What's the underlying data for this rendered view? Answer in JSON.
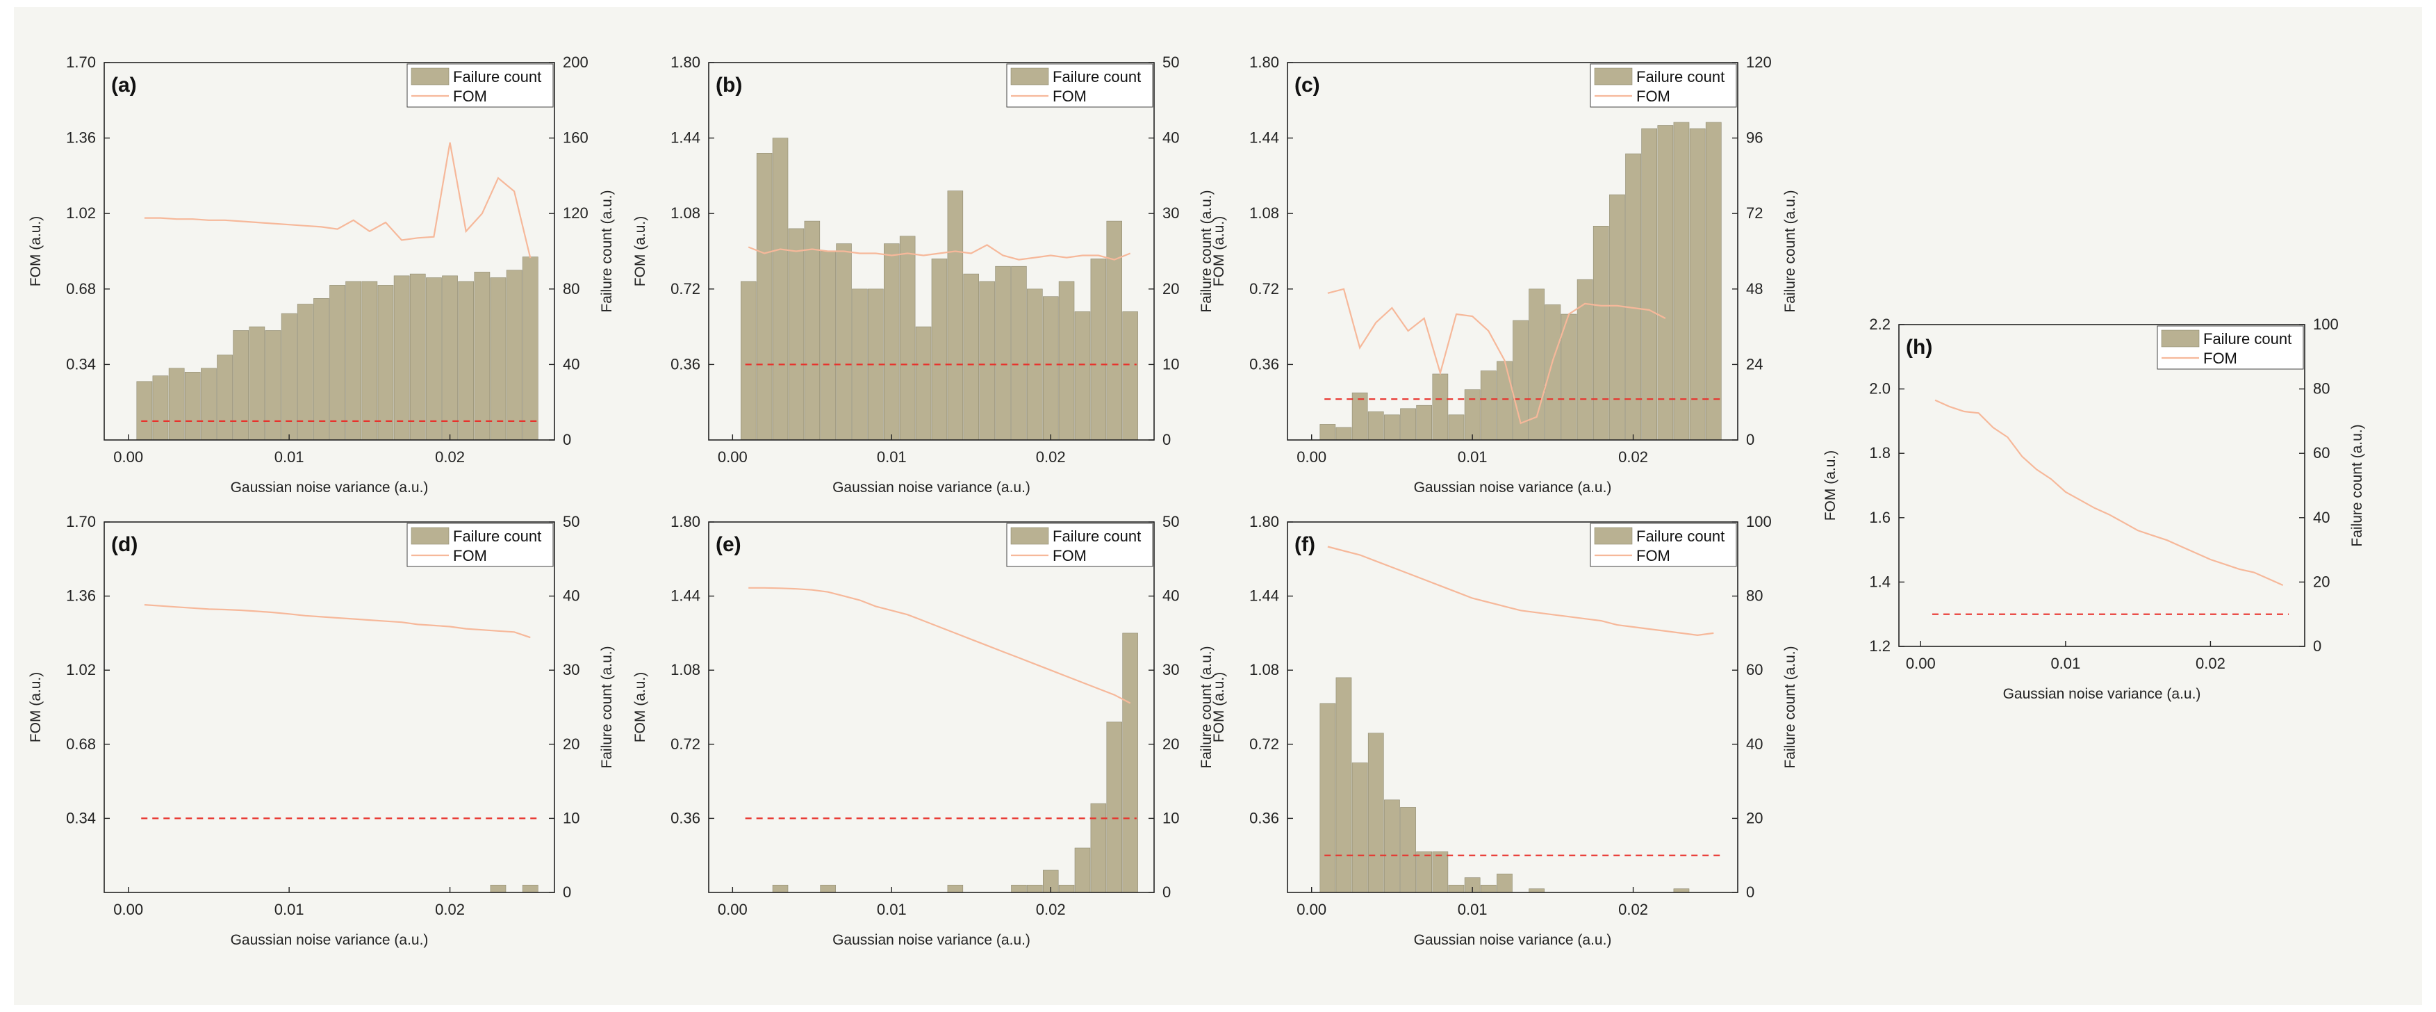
{
  "colors": {
    "bar": "#b9b192",
    "bar_stroke": "#8f8a71",
    "fom_line": "#f6b89a",
    "threshold": "#e8322c",
    "background": "#f5f5f1"
  },
  "chart_data": [
    {
      "id": "a",
      "type": "bar+line",
      "label": "(a)",
      "xlabel": "Gaussian noise variance (a.u.)",
      "ylabel": "FOM (a.u.)",
      "y2label": "Failure count (a.u.)",
      "xlim": [
        -0.0015,
        0.0265
      ],
      "ylim": [
        0,
        1.7
      ],
      "y2lim": [
        0,
        200
      ],
      "xticks": [
        0.0,
        0.01,
        0.02
      ],
      "xticklabels": [
        "0.00",
        "0.01",
        "0.02"
      ],
      "yticks": [
        0.34,
        0.68,
        1.02,
        1.36,
        1.7
      ],
      "yticklabels": [
        "0.34",
        "0.68",
        "1.02",
        "1.36",
        "1.70"
      ],
      "y2ticks": [
        0,
        40,
        80,
        120,
        160,
        200
      ],
      "y2ticklabels": [
        "0",
        "40",
        "80",
        "120",
        "160",
        "200"
      ],
      "legend": [
        "Failure count",
        "FOM"
      ],
      "legend_position": "top-right",
      "x": [
        0.001,
        0.002,
        0.003,
        0.004,
        0.005,
        0.006,
        0.007,
        0.008,
        0.009,
        0.01,
        0.011,
        0.012,
        0.013,
        0.014,
        0.015,
        0.016,
        0.017,
        0.018,
        0.019,
        0.02,
        0.021,
        0.022,
        0.023,
        0.024,
        0.025
      ],
      "failure_count": [
        31,
        34,
        38,
        36,
        38,
        45,
        58,
        60,
        58,
        67,
        72,
        75,
        82,
        84,
        84,
        82,
        87,
        88,
        86,
        87,
        84,
        89,
        86,
        90,
        97
      ],
      "fom": [
        1.0,
        1.0,
        0.995,
        0.995,
        0.99,
        0.99,
        0.985,
        0.98,
        0.975,
        0.97,
        0.965,
        0.96,
        0.95,
        0.99,
        0.94,
        0.98,
        0.9,
        0.91,
        0.915,
        1.34,
        0.94,
        1.02,
        1.18,
        1.12,
        0.82
      ],
      "threshold": 10
    },
    {
      "id": "b",
      "type": "bar+line",
      "label": "(b)",
      "xlabel": "Gaussian noise variance (a.u.)",
      "ylabel": "FOM (a.u.)",
      "y2label": "Failure count (a.u.)",
      "xlim": [
        -0.0015,
        0.0265
      ],
      "ylim": [
        0,
        1.8
      ],
      "y2lim": [
        0,
        50
      ],
      "xticks": [
        0.0,
        0.01,
        0.02
      ],
      "xticklabels": [
        "0.00",
        "0.01",
        "0.02"
      ],
      "yticks": [
        0.36,
        0.72,
        1.08,
        1.44,
        1.8
      ],
      "yticklabels": [
        "0.36",
        "0.72",
        "1.08",
        "1.44",
        "1.80"
      ],
      "y2ticks": [
        0,
        10,
        20,
        30,
        40,
        50
      ],
      "y2ticklabels": [
        "0",
        "10",
        "20",
        "30",
        "40",
        "50"
      ],
      "legend": [
        "Failure count",
        "FOM"
      ],
      "legend_position": "top-right",
      "x": [
        0.001,
        0.002,
        0.003,
        0.004,
        0.005,
        0.006,
        0.007,
        0.008,
        0.009,
        0.01,
        0.011,
        0.012,
        0.013,
        0.014,
        0.015,
        0.016,
        0.017,
        0.018,
        0.019,
        0.02,
        0.021,
        0.022,
        0.023,
        0.024,
        0.025
      ],
      "failure_count": [
        21,
        38,
        40,
        28,
        29,
        25,
        26,
        20,
        20,
        26,
        27,
        15,
        24,
        33,
        22,
        21,
        23,
        23,
        20,
        19,
        21,
        17,
        24,
        29,
        17
      ],
      "fom": [
        0.92,
        0.89,
        0.91,
        0.9,
        0.91,
        0.9,
        0.9,
        0.89,
        0.89,
        0.88,
        0.89,
        0.88,
        0.89,
        0.9,
        0.89,
        0.93,
        0.88,
        0.86,
        0.87,
        0.88,
        0.87,
        0.88,
        0.88,
        0.86,
        0.89
      ],
      "threshold": 10
    },
    {
      "id": "c",
      "type": "bar+line",
      "label": "(c)",
      "xlabel": "Gaussian noise variance (a.u.)",
      "ylabel": "FOM (a.u.)",
      "y2label": "Failure count (a.u.)",
      "xlim": [
        -0.0015,
        0.0265
      ],
      "ylim": [
        0,
        1.8
      ],
      "y2lim": [
        0,
        120
      ],
      "xticks": [
        0.0,
        0.01,
        0.02
      ],
      "xticklabels": [
        "0.00",
        "0.01",
        "0.02"
      ],
      "yticks": [
        0.36,
        0.72,
        1.08,
        1.44,
        1.8
      ],
      "yticklabels": [
        "0.36",
        "0.72",
        "1.08",
        "1.44",
        "1.80"
      ],
      "y2ticks": [
        0,
        24,
        48,
        72,
        96,
        120
      ],
      "y2ticklabels": [
        "0",
        "24",
        "48",
        "72",
        "96",
        "120"
      ],
      "legend": [
        "Failure count",
        "FOM"
      ],
      "legend_position": "top-right",
      "x": [
        0.001,
        0.002,
        0.003,
        0.004,
        0.005,
        0.006,
        0.007,
        0.008,
        0.009,
        0.01,
        0.011,
        0.012,
        0.013,
        0.014,
        0.015,
        0.016,
        0.017,
        0.018,
        0.019,
        0.02,
        0.021,
        0.022,
        0.023,
        0.024,
        0.025
      ],
      "failure_count": [
        5,
        4,
        15,
        9,
        8,
        10,
        11,
        21,
        8,
        16,
        22,
        25,
        38,
        48,
        43,
        40,
        51,
        68,
        78,
        91,
        99,
        100,
        101,
        99,
        101
      ],
      "fom": [
        0.7,
        0.72,
        0.44,
        0.56,
        0.63,
        0.52,
        0.58,
        0.32,
        0.6,
        0.59,
        0.52,
        0.38,
        0.08,
        0.11,
        0.38,
        0.6,
        0.65,
        0.64,
        0.64,
        0.63,
        0.62,
        0.58,
        null,
        null,
        null
      ],
      "threshold": 13
    },
    {
      "id": "d",
      "type": "bar+line",
      "label": "(d)",
      "xlabel": "Gaussian noise variance (a.u.)",
      "ylabel": "FOM (a.u.)",
      "y2label": "Failure count (a.u.)",
      "xlim": [
        -0.0015,
        0.0265
      ],
      "ylim": [
        0,
        1.7
      ],
      "y2lim": [
        0,
        50
      ],
      "xticks": [
        0.0,
        0.01,
        0.02
      ],
      "xticklabels": [
        "0.00",
        "0.01",
        "0.02"
      ],
      "yticks": [
        0.34,
        0.68,
        1.02,
        1.36,
        1.7
      ],
      "yticklabels": [
        "0.34",
        "0.68",
        "1.02",
        "1.36",
        "1.70"
      ],
      "y2ticks": [
        0,
        10,
        20,
        30,
        40,
        50
      ],
      "y2ticklabels": [
        "0",
        "10",
        "20",
        "30",
        "40",
        "50"
      ],
      "legend": [
        "Failure count",
        "FOM"
      ],
      "legend_position": "top-right",
      "x": [
        0.001,
        0.002,
        0.003,
        0.004,
        0.005,
        0.006,
        0.007,
        0.008,
        0.009,
        0.01,
        0.011,
        0.012,
        0.013,
        0.014,
        0.015,
        0.016,
        0.017,
        0.018,
        0.019,
        0.02,
        0.021,
        0.022,
        0.023,
        0.024,
        0.025
      ],
      "failure_count": [
        0,
        0,
        0,
        0,
        0,
        0,
        0,
        0,
        0,
        0,
        0,
        0,
        0,
        0,
        0,
        0,
        0,
        0,
        0,
        0,
        0,
        0,
        1,
        0,
        1
      ],
      "fom": [
        1.32,
        1.315,
        1.31,
        1.305,
        1.3,
        1.298,
        1.295,
        1.29,
        1.285,
        1.278,
        1.27,
        1.265,
        1.26,
        1.255,
        1.25,
        1.245,
        1.24,
        1.23,
        1.225,
        1.22,
        1.21,
        1.205,
        1.2,
        1.195,
        1.17
      ],
      "threshold": 10
    },
    {
      "id": "e",
      "type": "bar+line",
      "label": "(e)",
      "xlabel": "Gaussian noise variance (a.u.)",
      "ylabel": "FOM (a.u.)",
      "y2label": "Failure count (a.u.)",
      "xlim": [
        -0.0015,
        0.0265
      ],
      "ylim": [
        0,
        1.8
      ],
      "y2lim": [
        0,
        50
      ],
      "xticks": [
        0.0,
        0.01,
        0.02
      ],
      "xticklabels": [
        "0.00",
        "0.01",
        "0.02"
      ],
      "yticks": [
        0.36,
        0.72,
        1.08,
        1.44,
        1.8
      ],
      "yticklabels": [
        "0.36",
        "0.72",
        "1.08",
        "1.44",
        "1.80"
      ],
      "y2ticks": [
        0,
        10,
        20,
        30,
        40,
        50
      ],
      "y2ticklabels": [
        "0",
        "10",
        "20",
        "30",
        "40",
        "50"
      ],
      "legend": [
        "Failure count",
        "FOM"
      ],
      "legend_position": "top-right",
      "x": [
        0.001,
        0.002,
        0.003,
        0.004,
        0.005,
        0.006,
        0.007,
        0.008,
        0.009,
        0.01,
        0.011,
        0.012,
        0.013,
        0.014,
        0.015,
        0.016,
        0.017,
        0.018,
        0.019,
        0.02,
        0.021,
        0.022,
        0.023,
        0.024,
        0.025
      ],
      "failure_count": [
        0,
        0,
        1,
        0,
        0,
        1,
        0,
        0,
        0,
        0,
        0,
        0,
        0,
        1,
        0,
        0,
        0,
        1,
        1,
        3,
        1,
        6,
        12,
        23,
        35
      ],
      "fom": [
        1.48,
        1.48,
        1.478,
        1.475,
        1.47,
        1.46,
        1.44,
        1.42,
        1.39,
        1.37,
        1.35,
        1.32,
        1.29,
        1.26,
        1.23,
        1.2,
        1.17,
        1.14,
        1.11,
        1.08,
        1.05,
        1.02,
        0.99,
        0.96,
        0.92
      ],
      "threshold": 10
    },
    {
      "id": "f",
      "type": "bar+line",
      "label": "(f)",
      "xlabel": "Gaussian noise variance (a.u.)",
      "ylabel": "FOM (a.u.)",
      "y2label": "Failure count (a.u.)",
      "xlim": [
        -0.0015,
        0.0265
      ],
      "ylim": [
        0,
        1.8
      ],
      "y2lim": [
        0,
        100
      ],
      "xticks": [
        0.0,
        0.01,
        0.02
      ],
      "xticklabels": [
        "0.00",
        "0.01",
        "0.02"
      ],
      "yticks": [
        0.36,
        0.72,
        1.08,
        1.44,
        1.8
      ],
      "yticklabels": [
        "0.36",
        "0.72",
        "1.08",
        "1.44",
        "1.80"
      ],
      "y2ticks": [
        0,
        20,
        40,
        60,
        80,
        100
      ],
      "y2ticklabels": [
        "0",
        "20",
        "40",
        "60",
        "80",
        "100"
      ],
      "legend": [
        "Failure count",
        "FOM"
      ],
      "legend_position": "top-right",
      "x": [
        0.001,
        0.002,
        0.003,
        0.004,
        0.005,
        0.006,
        0.007,
        0.008,
        0.009,
        0.01,
        0.011,
        0.012,
        0.013,
        0.014,
        0.015,
        0.016,
        0.017,
        0.018,
        0.019,
        0.02,
        0.021,
        0.022,
        0.023,
        0.024,
        0.025
      ],
      "failure_count": [
        51,
        58,
        35,
        43,
        25,
        23,
        11,
        11,
        2,
        4,
        2,
        5,
        0,
        1,
        0,
        0,
        0,
        0,
        0,
        0,
        0,
        0,
        1,
        0,
        0
      ],
      "fom": [
        1.68,
        1.66,
        1.64,
        1.61,
        1.58,
        1.55,
        1.52,
        1.49,
        1.46,
        1.43,
        1.41,
        1.39,
        1.37,
        1.36,
        1.35,
        1.34,
        1.33,
        1.32,
        1.3,
        1.29,
        1.28,
        1.27,
        1.26,
        1.25,
        1.26
      ],
      "threshold": 10
    },
    {
      "id": "h",
      "type": "bar+line",
      "label": "(h)",
      "xlabel": "Gaussian noise variance (a.u.)",
      "ylabel": "FOM (a.u.)",
      "y2label": "Failure count (a.u.)",
      "xlim": [
        -0.0015,
        0.0265
      ],
      "ylim": [
        1.2,
        2.2
      ],
      "y2lim": [
        0,
        100
      ],
      "xticks": [
        0.0,
        0.01,
        0.02
      ],
      "xticklabels": [
        "0.00",
        "0.01",
        "0.02"
      ],
      "yticks": [
        1.2,
        1.4,
        1.6,
        1.8,
        2.0,
        2.2
      ],
      "yticklabels": [
        "1.2",
        "1.4",
        "1.6",
        "1.8",
        "2.0",
        "2.2"
      ],
      "y2ticks": [
        0,
        20,
        40,
        60,
        80,
        100
      ],
      "y2ticklabels": [
        "0",
        "20",
        "40",
        "60",
        "80",
        "100"
      ],
      "legend": [
        "Failure count",
        "FOM"
      ],
      "legend_position": "top-right",
      "x": [
        0.001,
        0.002,
        0.003,
        0.004,
        0.005,
        0.006,
        0.007,
        0.008,
        0.009,
        0.01,
        0.011,
        0.012,
        0.013,
        0.014,
        0.015,
        0.016,
        0.017,
        0.018,
        0.019,
        0.02,
        0.021,
        0.022,
        0.023,
        0.024,
        0.025
      ],
      "failure_count": [
        0,
        0,
        0,
        0,
        0,
        0,
        0,
        0,
        0,
        0,
        0,
        0,
        0,
        0,
        0,
        0,
        0,
        0,
        0,
        0,
        0,
        0,
        0,
        0,
        0
      ],
      "fom": [
        1.965,
        1.945,
        1.93,
        1.925,
        1.88,
        1.85,
        1.79,
        1.75,
        1.72,
        1.68,
        1.655,
        1.63,
        1.61,
        1.585,
        1.56,
        1.545,
        1.53,
        1.51,
        1.49,
        1.47,
        1.455,
        1.44,
        1.43,
        1.41,
        1.39
      ],
      "threshold": 10
    }
  ]
}
